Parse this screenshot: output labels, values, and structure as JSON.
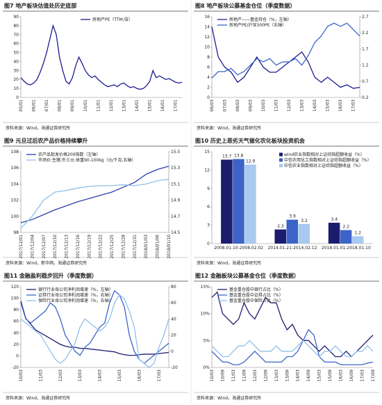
{
  "chart_data": [
    {
      "type": "line",
      "title": "图7  地产板块估值处历史底部",
      "source": "资料来源：Wind，海通证券研究所",
      "legend": "upper center",
      "grid": false,
      "categories": [
        "05/01",
        null,
        null,
        null,
        "06/01",
        null,
        null,
        null,
        "07/01",
        null,
        null,
        null,
        "08/01",
        null,
        null,
        null,
        "09/01",
        null,
        null,
        null,
        "10/01",
        null,
        null,
        null,
        "11/01",
        null,
        null,
        null,
        "12/01",
        null,
        null,
        null,
        "13/01",
        null,
        null,
        null,
        "14/01",
        null,
        null,
        null,
        "15/01",
        null,
        null,
        null,
        "16/01",
        null,
        null,
        null,
        "17/01",
        null,
        null
      ],
      "ylim": [
        0,
        90
      ],
      "yticks": [
        0,
        10,
        20,
        30,
        40,
        50,
        60,
        70,
        80,
        90
      ],
      "series": [
        {
          "name": "房地产PE（TTM,倍）",
          "color": "#1b1b8f",
          "values": [
            22,
            18,
            15,
            14,
            16,
            20,
            28,
            38,
            50,
            65,
            80,
            70,
            45,
            30,
            18,
            15,
            22,
            35,
            45,
            38,
            30,
            25,
            22,
            24,
            20,
            17,
            14,
            12,
            13,
            14,
            12,
            15,
            16,
            13,
            11,
            12,
            10,
            9,
            10,
            13,
            18,
            30,
            22,
            24,
            22,
            20,
            21,
            19,
            17,
            16,
            17
          ]
        }
      ]
    },
    {
      "type": "line",
      "title": "图8  地产板块公募基金仓位（季度数据）",
      "source": "资料来源：Wind，海通证券研究所",
      "legend": "upper left",
      "grid": false,
      "categories": [
        "06/03",
        null,
        "07/03",
        null,
        "08/03",
        null,
        "09/03",
        null,
        "10/03",
        null,
        "11/03",
        null,
        "12/03",
        null,
        "13/03",
        null,
        "14/03",
        null,
        "15/03",
        null,
        "16/03",
        null,
        "17/03",
        null
      ],
      "ylim": [
        0,
        16
      ],
      "yticks": [
        0,
        2,
        4,
        6,
        8,
        10,
        12,
        14,
        16
      ],
      "y2lim": [
        0.2,
        2.7
      ],
      "y2ticks": [
        0.2,
        0.7,
        1.2,
        1.7,
        2.2,
        2.7
      ],
      "series": [
        {
          "name": "房地产——基金持仓（%，左轴）",
          "color": "#1b1b8f",
          "values": [
            14,
            8,
            6,
            5,
            3,
            4,
            6,
            8,
            6,
            5,
            5,
            6,
            7,
            8,
            9,
            7,
            4,
            3,
            4,
            3,
            2,
            2.5,
            1.8,
            2
          ]
        },
        {
          "name": "房地产PE/沪深300PE（右轴）",
          "color": "#3c63c8",
          "axis": "y2",
          "values": [
            0.8,
            1.0,
            1.0,
            1.1,
            0.9,
            1.0,
            1.2,
            1.4,
            1.3,
            1.4,
            1.2,
            1.3,
            1.3,
            1.4,
            1.2,
            1.5,
            1.9,
            2.1,
            2.4,
            2.5,
            2.4,
            2.5,
            2.3,
            2.1
          ]
        }
      ]
    },
    {
      "type": "line",
      "title": "图9  元旦过后农产品价格持续攀升",
      "source": "资料来源：Wind，新华网，海通证券研究所",
      "legend": "upper left",
      "grid": false,
      "categories": [
        "2017/12/01",
        "2017/12/04",
        "2017/12/07",
        "2017/12/10",
        "2017/12/13",
        "2017/12/16",
        "2017/12/19",
        "2017/12/22",
        "2017/12/25",
        "2017/12/28",
        "2017/12/31",
        "2018/01/03",
        "2018/01/06",
        "2018/01/10"
      ],
      "ylim": [
        98,
        108
      ],
      "yticks": [
        98,
        100,
        102,
        104,
        106,
        108
      ],
      "y2lim": [
        14.5,
        15.5
      ],
      "y2ticks": [
        14.5,
        14.7,
        14.9,
        15.1,
        15.3,
        15.5
      ],
      "series": [
        {
          "name": "农产品批发价格200指数（左轴）",
          "color": "#2a3fa8",
          "values": [
            99.2,
            99.6,
            100.2,
            100.8,
            101.3,
            101.8,
            102.2,
            102.6,
            103.0,
            103.6,
            104.2,
            105.2,
            105.8,
            106.2
          ]
        },
        {
          "name": "市场价:生猪:外三元:体重90-100kg（元/千克,右轴）",
          "color": "#8fc0ea",
          "axis": "y2",
          "values": [
            14.55,
            14.7,
            14.9,
            15.0,
            15.02,
            15.05,
            15.07,
            15.08,
            15.08,
            15.09,
            15.08,
            15.1,
            15.14,
            15.16
          ]
        }
      ]
    },
    {
      "type": "bar",
      "title": "图10  历史上恶劣天气催化农化板块投资机会",
      "source": "资料来源：Wind，海通证券研究所",
      "legend": "upper right",
      "grid": false,
      "categories": [
        "2008.01.10-2008.02.02",
        "2014.01.21-2014.02.12",
        "2018.01.01-2018.01.10"
      ],
      "ylim": [
        0,
        15
      ],
      "yticks": [
        0,
        3,
        6,
        9,
        12,
        15
      ],
      "series": [
        {
          "name": "wind农业指数相对上证综指超额收益（%）",
          "color": "#1c1c6e",
          "values": [
            13.7,
            2.3,
            3.4
          ]
        },
        {
          "name": "中信农用化工指数相对上证综指超额收益（%）",
          "color": "#3c63c8",
          "values": [
            13.8,
            3.9,
            2.2
          ]
        },
        {
          "name": "中信农业指数相对上证综指超额收益（%）",
          "color": "#a9c9ee",
          "values": [
            12.9,
            3.2,
            1.2
          ]
        }
      ]
    },
    {
      "type": "line",
      "title": "图11  金融盈利稳步回升（季度数据）",
      "source": "资料来源：Wind，海通证券研究所",
      "legend": "upper left",
      "grid": false,
      "categories": [
        "10/03",
        null,
        null,
        null,
        "11/03",
        null,
        null,
        null,
        "12/03",
        null,
        null,
        null,
        "13/03",
        null,
        null,
        null,
        "14/03",
        null,
        null,
        null,
        "15/03",
        null,
        null,
        null,
        "16/03",
        null,
        null,
        null,
        "17/03",
        null,
        null
      ],
      "ylim": [
        -20,
        120
      ],
      "yticks": [
        -20,
        0,
        20,
        40,
        60,
        80,
        100,
        120
      ],
      "y2lim": [
        -20,
        80
      ],
      "y2ticks": [
        -20,
        0,
        20,
        40,
        60,
        80
      ],
      "series": [
        {
          "name": "银行行业母公司净利润增速（%，左轴）",
          "color": "#1b1b6e",
          "values": [
            95,
            65,
            55,
            45,
            40,
            35,
            30,
            25,
            20,
            17,
            15,
            15,
            13,
            13,
            12,
            11,
            10,
            9,
            8,
            7,
            4,
            2,
            1,
            1,
            2,
            3,
            3,
            3,
            4,
            5,
            6
          ]
        },
        {
          "name": "证券行业母公司净利润增速（%，右轴）",
          "color": "#3c63c8",
          "axis": "y2",
          "values": [
            60,
            40,
            35,
            40,
            45,
            50,
            60,
            55,
            40,
            20,
            10,
            0,
            -5,
            5,
            10,
            20,
            30,
            35,
            60,
            75,
            70,
            55,
            20,
            0,
            -10,
            -15,
            -10,
            -5,
            0,
            5,
            10
          ]
        },
        {
          "name": "保险行业母公司净利润增速（%，右轴）",
          "color": "#8fc0ea",
          "axis": "y2",
          "values": [
            40,
            35,
            30,
            25,
            20,
            10,
            0,
            -10,
            -15,
            -10,
            0,
            10,
            30,
            40,
            35,
            30,
            25,
            30,
            40,
            60,
            70,
            65,
            50,
            30,
            -10,
            -15,
            -20,
            -15,
            5,
            20,
            40
          ]
        }
      ]
    },
    {
      "type": "line",
      "title": "图12  金融板块公募基金仓位（季度数据）",
      "source": "资料来源：Wind，海通证券研究所",
      "legend": "upper left",
      "grid": false,
      "categories": [
        "10/03",
        null,
        "10/09",
        null,
        "11/03",
        null,
        "11/09",
        null,
        "12/03",
        null,
        "12/09",
        null,
        "13/03",
        null,
        "13/09",
        null,
        "14/03",
        null,
        "14/09",
        null,
        "15/03",
        null,
        "15/09",
        null,
        "16/03",
        null,
        "16/09",
        null,
        "17/03",
        null,
        "17/09"
      ],
      "ylim": [
        0,
        15
      ],
      "yticks": [
        {
          "value": 0,
          "label": "0%"
        },
        {
          "value": 5,
          "label": "5%"
        },
        {
          "value": 10,
          "label": "10%"
        },
        {
          "value": 15,
          "label": "15%"
        }
      ],
      "series": [
        {
          "name": "基金重仓股中银行占比（%）",
          "color": "#1b1b6e",
          "values": [
            13,
            14,
            10,
            9,
            8,
            9,
            12,
            10,
            9,
            11,
            13,
            12,
            12,
            9,
            7,
            8,
            6,
            5,
            5,
            4,
            3,
            4,
            3,
            2,
            2,
            3,
            2,
            3,
            4,
            5,
            6
          ]
        },
        {
          "name": "基金重仓股中证券占比（%）",
          "color": "#3c63c8",
          "values": [
            3,
            2,
            1,
            1,
            0.5,
            0.5,
            1,
            2,
            3,
            2,
            1,
            1,
            1,
            1,
            2,
            2,
            3,
            5,
            7,
            6,
            2,
            1,
            1,
            1,
            0.5,
            0.5,
            0.5,
            0.5,
            0.5,
            0.8,
            1
          ]
        },
        {
          "name": "基金重仓股中保险占比（%）",
          "color": "#8fc0ea",
          "values": [
            4,
            3,
            2,
            2,
            3,
            4,
            4,
            5,
            4,
            3,
            3,
            3,
            4,
            3,
            3,
            3,
            4,
            5,
            4,
            3,
            2,
            3,
            3,
            4,
            3,
            2,
            2,
            3,
            3,
            4,
            3
          ]
        }
      ]
    }
  ]
}
